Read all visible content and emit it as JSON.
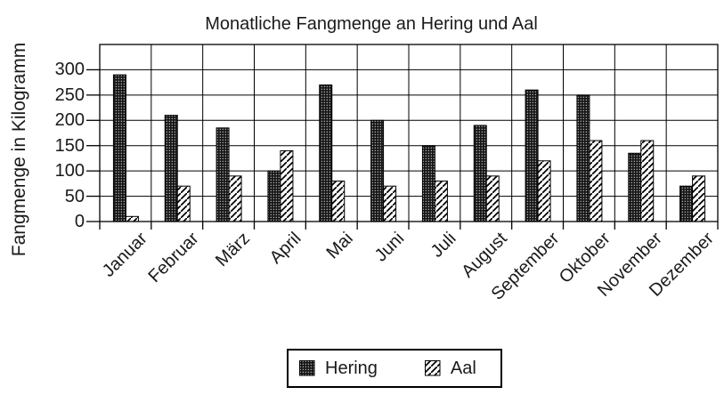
{
  "chart_data": {
    "type": "bar",
    "title": "Monatliche Fangmenge an Hering und Aal",
    "xlabel": "",
    "ylabel": "Fangmenge in Kilogramm",
    "categories": [
      "Januar",
      "Februar",
      "März",
      "April",
      "Mai",
      "Juni",
      "Juli",
      "August",
      "September",
      "Oktober",
      "November",
      "Dezember"
    ],
    "series": [
      {
        "name": "Hering",
        "pattern": "dotted-black",
        "values": [
          290,
          210,
          185,
          100,
          270,
          200,
          150,
          190,
          260,
          250,
          135,
          70
        ]
      },
      {
        "name": "Aal",
        "pattern": "diagonal-hatch",
        "values": [
          10,
          70,
          90,
          140,
          80,
          70,
          80,
          90,
          120,
          160,
          160,
          90
        ]
      }
    ],
    "ylim": [
      0,
      350
    ],
    "ytick_step": 50,
    "ytick_labels": [
      "0",
      "50",
      "100",
      "150",
      "200",
      "250",
      "300"
    ],
    "grid": true,
    "legend_position": "bottom",
    "colors": {
      "line": "#000000",
      "hering_fill": "#151515",
      "hering_dot": "#cfcfcf",
      "aal_fill": "#ffffff",
      "aal_stroke": "#000000",
      "text": "#1a1a1a"
    }
  }
}
